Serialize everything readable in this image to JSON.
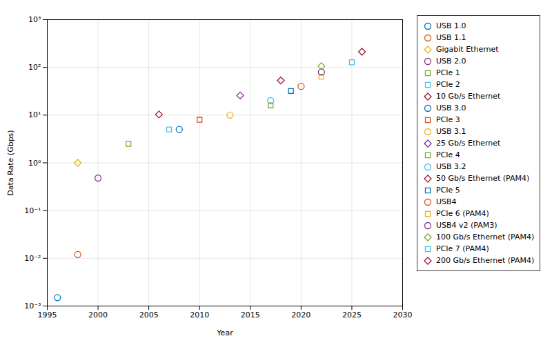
{
  "chart_data": {
    "type": "scatter",
    "title": "",
    "xlabel": "Year",
    "ylabel": "Data Rate (Gbps)",
    "log": "y",
    "xlim": [
      1995,
      2030
    ],
    "xticks": [
      1995,
      2000,
      2005,
      2010,
      2015,
      2020,
      2025,
      2030
    ],
    "ylim": [
      0.001,
      1000
    ],
    "yticks": [
      {
        "value": 0.001,
        "label": "10⁻³"
      },
      {
        "value": 0.01,
        "label": "10⁻²"
      },
      {
        "value": 0.1,
        "label": "10⁻¹"
      },
      {
        "value": 1,
        "label": "10⁰"
      },
      {
        "value": 10,
        "label": "10¹"
      },
      {
        "value": 100,
        "label": "10²"
      },
      {
        "value": 1000,
        "label": "10³"
      }
    ],
    "grid": true,
    "legend": "right",
    "series": [
      {
        "name": "USB 1.0",
        "x": [
          1996
        ],
        "values": [
          0.0015
        ],
        "marker": "circle",
        "color": "#0072BD"
      },
      {
        "name": "USB 1.1",
        "x": [
          1998
        ],
        "values": [
          0.012
        ],
        "marker": "circle",
        "color": "#D95319"
      },
      {
        "name": "Gigabit Ethernet",
        "x": [
          1998
        ],
        "values": [
          1.0
        ],
        "marker": "diamond",
        "color": "#EDB120"
      },
      {
        "name": "USB 2.0",
        "x": [
          2000
        ],
        "values": [
          0.48
        ],
        "marker": "circle",
        "color": "#7E2F8E"
      },
      {
        "name": "PCIe 1",
        "x": [
          2003
        ],
        "values": [
          2.5
        ],
        "marker": "square",
        "color": "#77AC30"
      },
      {
        "name": "PCIe 2",
        "x": [
          2007
        ],
        "values": [
          5.0
        ],
        "marker": "square",
        "color": "#4DBEEE"
      },
      {
        "name": "10 Gb/s Ethernet",
        "x": [
          2006
        ],
        "values": [
          10.3125
        ],
        "marker": "diamond",
        "color": "#A2142F"
      },
      {
        "name": "USB 3.0",
        "x": [
          2008
        ],
        "values": [
          5.0
        ],
        "marker": "circle",
        "color": "#0072BD"
      },
      {
        "name": "PCIe 3",
        "x": [
          2010
        ],
        "values": [
          8.0
        ],
        "marker": "square",
        "color": "#D95319"
      },
      {
        "name": "USB 3.1",
        "x": [
          2013
        ],
        "values": [
          10.0
        ],
        "marker": "circle",
        "color": "#EDB120"
      },
      {
        "name": "25 Gb/s Ethernet",
        "x": [
          2014
        ],
        "values": [
          25.78125
        ],
        "marker": "diamond",
        "color": "#7E2F8E"
      },
      {
        "name": "PCIe 4",
        "x": [
          2017
        ],
        "values": [
          16.0
        ],
        "marker": "square",
        "color": "#77AC30"
      },
      {
        "name": "USB 3.2",
        "x": [
          2017
        ],
        "values": [
          20.0
        ],
        "marker": "circle",
        "color": "#4DBEEE"
      },
      {
        "name": "50 Gb/s Ethernet (PAM4)",
        "x": [
          2018
        ],
        "values": [
          53.125
        ],
        "marker": "diamond",
        "color": "#A2142F"
      },
      {
        "name": "PCIe 5",
        "x": [
          2019
        ],
        "values": [
          32.0
        ],
        "marker": "square",
        "color": "#0072BD"
      },
      {
        "name": "USB4",
        "x": [
          2020
        ],
        "values": [
          40.0
        ],
        "marker": "circle",
        "color": "#D95319"
      },
      {
        "name": "PCIe 6 (PAM4)",
        "x": [
          2022
        ],
        "values": [
          64.0
        ],
        "marker": "square",
        "color": "#EDB120"
      },
      {
        "name": "USB4 v2 (PAM3)",
        "x": [
          2022
        ],
        "values": [
          80.0
        ],
        "marker": "circle",
        "color": "#7E2F8E"
      },
      {
        "name": "100 Gb/s Ethernet (PAM4)",
        "x": [
          2022
        ],
        "values": [
          106.25
        ],
        "marker": "diamond",
        "color": "#77AC30"
      },
      {
        "name": "PCIe 7 (PAM4)",
        "x": [
          2025
        ],
        "values": [
          128.0
        ],
        "marker": "square",
        "color": "#4DBEEE"
      },
      {
        "name": "200 Gb/s Ethernet (PAM4)",
        "x": [
          2026
        ],
        "values": [
          212.5
        ],
        "marker": "diamond",
        "color": "#A2142F"
      }
    ]
  }
}
